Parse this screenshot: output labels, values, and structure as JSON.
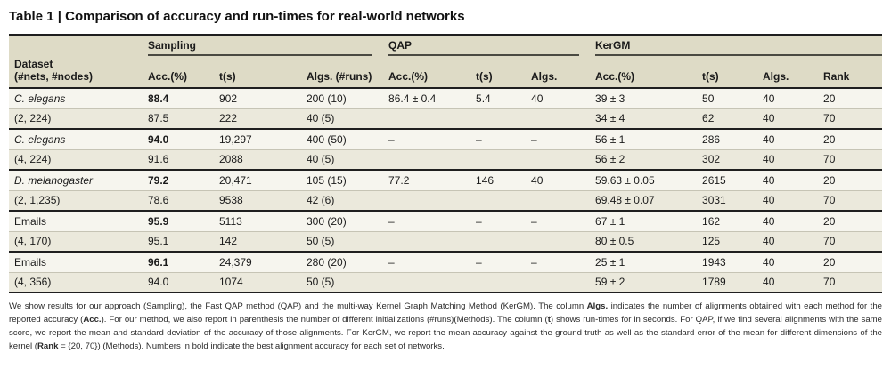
{
  "title": "Table 1 | Comparison of accuracy and run-times for real-world networks",
  "table": {
    "dataset_header": {
      "line1": "Dataset",
      "line2": "(#nets, #nodes)"
    },
    "groups": [
      {
        "label": "Sampling",
        "span": 3
      },
      {
        "label": "QAP",
        "span": 3
      },
      {
        "label": "KerGM",
        "span": 4
      }
    ],
    "columns": [
      "Acc.(%)",
      "t(s)",
      "Algs. (#runs)",
      "Acc.(%)",
      "t(s)",
      "Algs.",
      "Acc.(%)",
      "t(s)",
      "Algs.",
      "Rank"
    ],
    "rows": [
      {
        "cells": [
          "C. elegans",
          "88.4",
          "902",
          "200 (10)",
          "86.4 ± 0.4",
          "5.4",
          "40",
          "39 ± 3",
          "50",
          "40",
          "20"
        ],
        "bold_cols": [
          1
        ],
        "italic_cols": [
          0
        ],
        "group_start": true
      },
      {
        "cells": [
          "(2, 224)",
          "87.5",
          "222",
          "40 (5)",
          "",
          "",
          "",
          "34 ± 4",
          "62",
          "40",
          "70"
        ],
        "bold_cols": [],
        "italic_cols": [],
        "group_start": false
      },
      {
        "cells": [
          "C. elegans",
          "94.0",
          "19,297",
          "400 (50)",
          "–",
          "–",
          "–",
          "56 ± 1",
          "286",
          "40",
          "20"
        ],
        "bold_cols": [
          1
        ],
        "italic_cols": [
          0
        ],
        "group_start": true
      },
      {
        "cells": [
          "(4, 224)",
          "91.6",
          "2088",
          "40 (5)",
          "",
          "",
          "",
          "56 ± 2",
          "302",
          "40",
          "70"
        ],
        "bold_cols": [],
        "italic_cols": [],
        "group_start": false
      },
      {
        "cells": [
          "D. melanogaster",
          "79.2",
          "20,471",
          "105 (15)",
          "77.2",
          "146",
          "40",
          "59.63 ± 0.05",
          "2615",
          "40",
          "20"
        ],
        "bold_cols": [
          1
        ],
        "italic_cols": [
          0
        ],
        "group_start": true
      },
      {
        "cells": [
          "(2, 1,235)",
          "78.6",
          "9538",
          "42 (6)",
          "",
          "",
          "",
          "69.48 ± 0.07",
          "3031",
          "40",
          "70"
        ],
        "bold_cols": [],
        "italic_cols": [],
        "group_start": false
      },
      {
        "cells": [
          "Emails",
          "95.9",
          "5113",
          "300 (20)",
          "–",
          "–",
          "–",
          "67 ± 1",
          "162",
          "40",
          "20"
        ],
        "bold_cols": [
          1
        ],
        "italic_cols": [],
        "group_start": true
      },
      {
        "cells": [
          "(4, 170)",
          "95.1",
          "142",
          "50 (5)",
          "",
          "",
          "",
          "80 ± 0.5",
          "125",
          "40",
          "70"
        ],
        "bold_cols": [],
        "italic_cols": [],
        "group_start": false
      },
      {
        "cells": [
          "Emails",
          "96.1",
          "24,379",
          "280 (20)",
          "–",
          "–",
          "–",
          "25 ± 1",
          "1943",
          "40",
          "20"
        ],
        "bold_cols": [
          1
        ],
        "italic_cols": [],
        "group_start": true
      },
      {
        "cells": [
          "(4, 356)",
          "94.0",
          "1074",
          "50 (5)",
          "",
          "",
          "",
          "59 ± 2",
          "1789",
          "40",
          "70"
        ],
        "bold_cols": [],
        "italic_cols": [],
        "group_start": false
      }
    ]
  },
  "footnote": {
    "segments": [
      {
        "text": "We show results for our approach (Sampling), the Fast QAP method (QAP) and the multi-way Kernel Graph Matching Method (KerGM). The column ",
        "bold": false
      },
      {
        "text": "Algs.",
        "bold": true
      },
      {
        "text": " indicates the number of alignments obtained with each method for the reported accuracy (",
        "bold": false
      },
      {
        "text": "Acc.",
        "bold": true
      },
      {
        "text": "). For our method, we also report in parenthesis the number of different initializations (#runs)(Methods). The column (",
        "bold": false
      },
      {
        "text": "t",
        "bold": true
      },
      {
        "text": ") shows run-times for in seconds. For QAP, if we find several alignments with the same score, we report the mean and standard deviation of the accuracy of those alignments. For KerGM, we report the mean accuracy against the ground truth as well as the standard error of the mean for different dimensions of the kernel (",
        "bold": false
      },
      {
        "text": "Rank",
        "bold": true
      },
      {
        "text": " = {20, 70}) (Methods). Numbers in bold indicate the best alignment accuracy for each set of networks.",
        "bold": false
      }
    ]
  },
  "colors": {
    "header_bg": "#dedbc6",
    "row_light": "#f6f5ee",
    "row_dark": "#ebe9dc",
    "rule_dark": "#1f1f1f",
    "rule_light": "#c6c4b5"
  }
}
